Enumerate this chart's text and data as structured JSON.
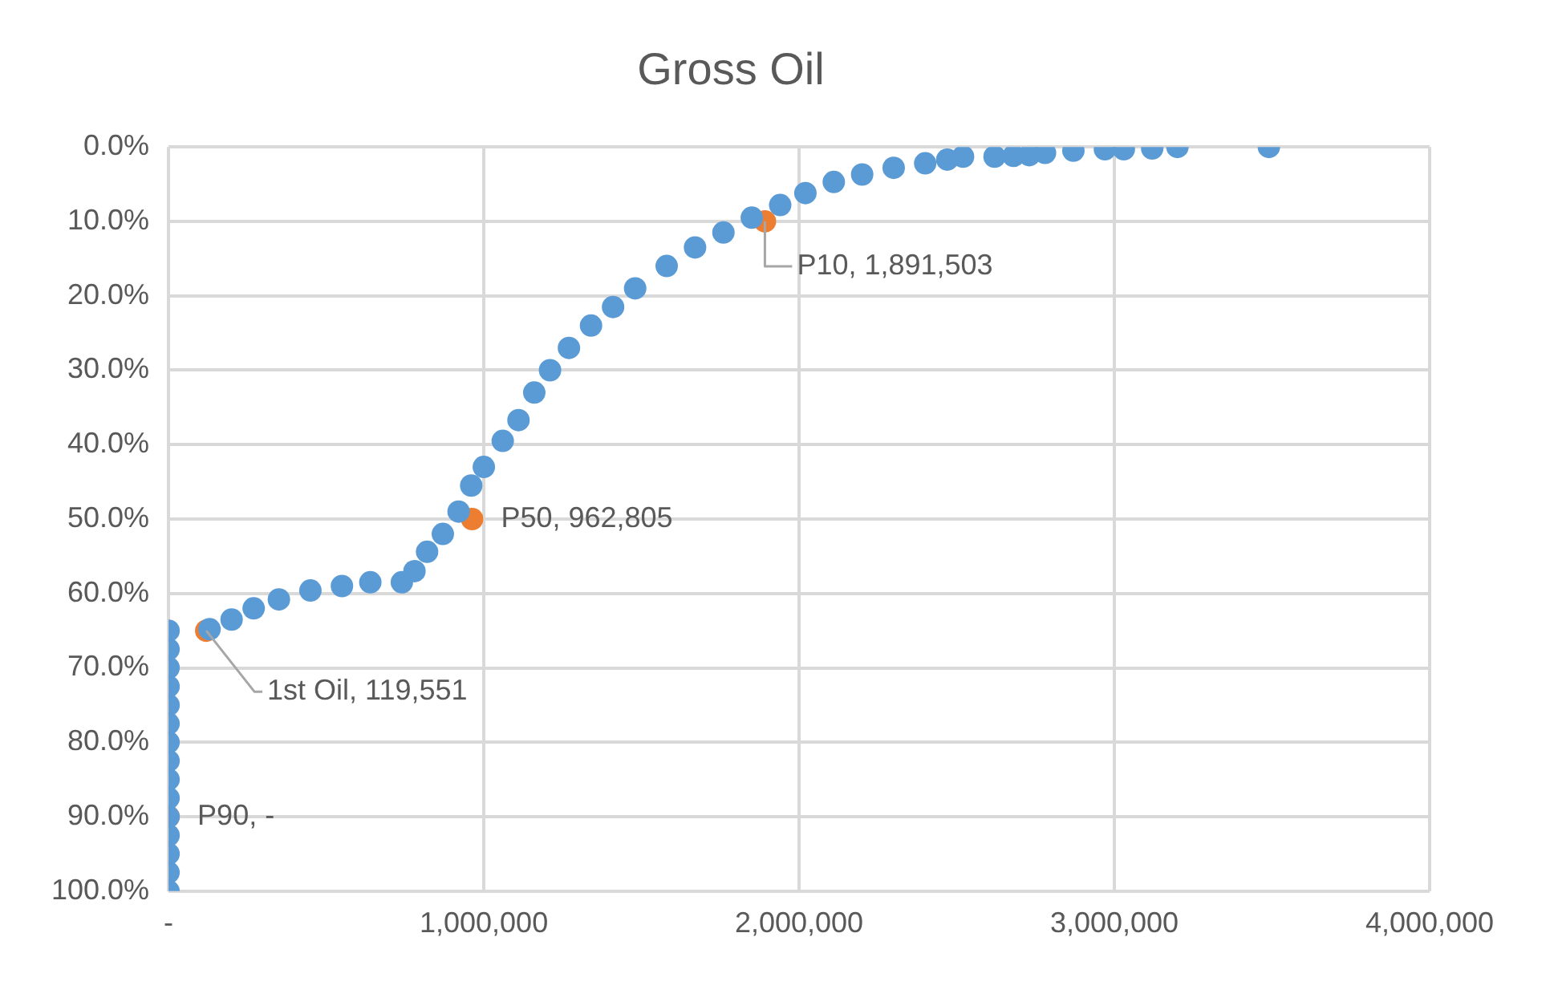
{
  "chart_data": {
    "type": "scatter",
    "title": "Gross Oil",
    "marker": "circle",
    "grid": true,
    "legend": false,
    "xlim": [
      0,
      4000000
    ],
    "xticks": [
      {
        "value": 0,
        "label": "-"
      },
      {
        "value": 1000000,
        "label": "1,000,000"
      },
      {
        "value": 2000000,
        "label": "2,000,000"
      },
      {
        "value": 3000000,
        "label": "3,000,000"
      },
      {
        "value": 4000000,
        "label": "4,000,000"
      }
    ],
    "ylim": [
      100,
      0
    ],
    "yticks": [
      {
        "value": 0,
        "label": "0.0%"
      },
      {
        "value": 10,
        "label": "10.0%"
      },
      {
        "value": 20,
        "label": "20.0%"
      },
      {
        "value": 30,
        "label": "30.0%"
      },
      {
        "value": 40,
        "label": "40.0%"
      },
      {
        "value": 50,
        "label": "50.0%"
      },
      {
        "value": 60,
        "label": "60.0%"
      },
      {
        "value": 70,
        "label": "70.0%"
      },
      {
        "value": 80,
        "label": "80.0%"
      },
      {
        "value": 90,
        "label": "90.0%"
      },
      {
        "value": 100,
        "label": "100.0%"
      }
    ],
    "series": [
      {
        "color": "#5b9bd5",
        "x": [
          0,
          0,
          0,
          0,
          0,
          0,
          0,
          0,
          0,
          0,
          0,
          0,
          0,
          0,
          0,
          130000,
          200000,
          270000,
          350000,
          450000,
          550000,
          640000,
          740000,
          780000,
          820000,
          870000,
          920000,
          960000,
          1000000,
          1060000,
          1110000,
          1160000,
          1210000,
          1270000,
          1340000,
          1410000,
          1480000,
          1580000,
          1670000,
          1760000,
          1850000,
          1940000,
          2020000,
          2110000,
          2200000,
          2300000,
          2400000,
          2470000,
          2520000,
          2620000,
          2680000,
          2730000,
          2780000,
          2870000,
          2970000,
          3030000,
          3120000,
          3200000,
          3490000
        ],
        "values": [
          65,
          67.5,
          70,
          72.5,
          75,
          77.5,
          80,
          82.5,
          85,
          87.5,
          90,
          92.5,
          95,
          97.5,
          100,
          64.8,
          63.5,
          62,
          60.8,
          59.6,
          59,
          58.5,
          58.5,
          57,
          54.4,
          52,
          49,
          45.5,
          43,
          39.5,
          36.7,
          33,
          30,
          27,
          24,
          21.5,
          19,
          16,
          13.5,
          11.5,
          9.5,
          7.8,
          6.2,
          4.7,
          3.7,
          2.8,
          2.2,
          1.7,
          1.3,
          1.3,
          1.2,
          1.1,
          0.8,
          0.5,
          0.3,
          0.3,
          0.2,
          0,
          0
        ]
      },
      {
        "color": "#ed7d31",
        "x": [
          1891503,
          962805,
          119551,
          0
        ],
        "values": [
          10,
          50,
          65,
          90
        ],
        "value_labels": [
          "P10, 1,891,503",
          "P50, 962,805",
          "1st Oil, 119,551",
          "P90, -"
        ]
      }
    ]
  }
}
